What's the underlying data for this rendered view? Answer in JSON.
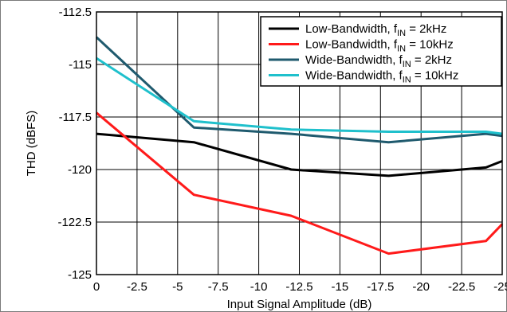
{
  "chart_data": {
    "type": "line",
    "xlabel": "Input Signal Amplitude (dB)",
    "ylabel": "THD (dBFS)",
    "xlim": [
      0,
      -25
    ],
    "ylim": [
      -125,
      -112.5
    ],
    "x_ticks": [
      0,
      -2.5,
      -5,
      -7.5,
      -10,
      -12.5,
      -15,
      -17.5,
      -20,
      -22.5,
      -25
    ],
    "y_ticks": [
      -112.5,
      -115,
      -117.5,
      -120,
      -122.5,
      -125
    ],
    "x_tick_labels": [
      "0",
      "-2.5",
      "-5",
      "-7.5",
      "-10",
      "-12.5",
      "-15",
      "-17.5",
      "-20",
      "-22.5",
      "-25"
    ],
    "y_tick_labels": [
      "-112.5",
      "-115",
      "-117.5",
      "-120",
      "-122.5",
      "-125"
    ],
    "grid": true,
    "legend_position": "top-right",
    "series": [
      {
        "name": "Low-Bandwidth, f",
        "name_sub": "IN",
        "name_tail": " = 2kHz",
        "color": "#000000",
        "x": [
          0,
          -6,
          -12,
          -18,
          -24,
          -25
        ],
        "y": [
          -118.3,
          -118.7,
          -120,
          -120.3,
          -119.9,
          -119.6
        ]
      },
      {
        "name": "Low-Bandwidth, f",
        "name_sub": "IN",
        "name_tail": " = 10kHz",
        "color": "#ff1a1a",
        "x": [
          0,
          -6,
          -12,
          -18,
          -24,
          -25
        ],
        "y": [
          -117.3,
          -121.2,
          -122.2,
          -124,
          -123.4,
          -122.6
        ]
      },
      {
        "name": "Wide-Bandwidth, f",
        "name_sub": "IN",
        "name_tail": " = 2kHz",
        "color": "#1f5a6e",
        "x": [
          0,
          -6,
          -12,
          -18,
          -24,
          -25
        ],
        "y": [
          -113.7,
          -118,
          -118.3,
          -118.7,
          -118.3,
          -118.4
        ]
      },
      {
        "name": "Wide-Bandwidth, f",
        "name_sub": "IN",
        "name_tail": " = 10kHz",
        "color": "#1fc0cc",
        "x": [
          0,
          -6,
          -12,
          -18,
          -24,
          -25
        ],
        "y": [
          -114.7,
          -117.7,
          -118.1,
          -118.2,
          -118.2,
          -118.3
        ]
      }
    ]
  }
}
